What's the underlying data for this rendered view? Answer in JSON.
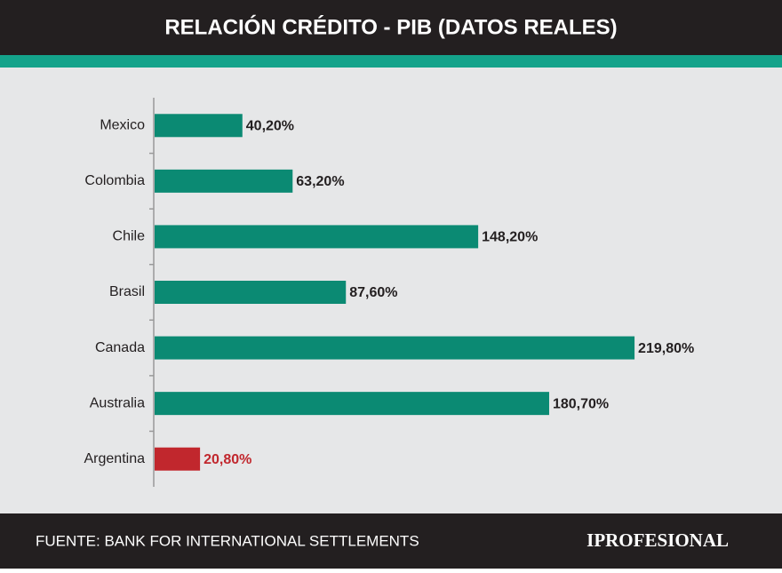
{
  "chart_data": {
    "type": "bar",
    "orientation": "horizontal",
    "title": "RELACIÓN CRÉDITO - PIB (DATOS REALES)",
    "categories": [
      "Mexico",
      "Colombia",
      "Chile",
      "Brasil",
      "Canada",
      "Australia",
      "Argentina"
    ],
    "values": [
      40.2,
      63.2,
      148.2,
      87.6,
      219.8,
      180.7,
      20.8
    ],
    "value_labels": [
      "40,20%",
      "63,20%",
      "148,20%",
      "87,60%",
      "219,80%",
      "180,70%",
      "20,80%"
    ],
    "colors": [
      "#0b8a73",
      "#0b8a73",
      "#0b8a73",
      "#0b8a73",
      "#0b8a73",
      "#0b8a73",
      "#c1272d"
    ],
    "source": "FUENTE: BANK FOR INTERNATIONAL SETTLEMENTS",
    "brand": "IPROFESIONAL"
  }
}
